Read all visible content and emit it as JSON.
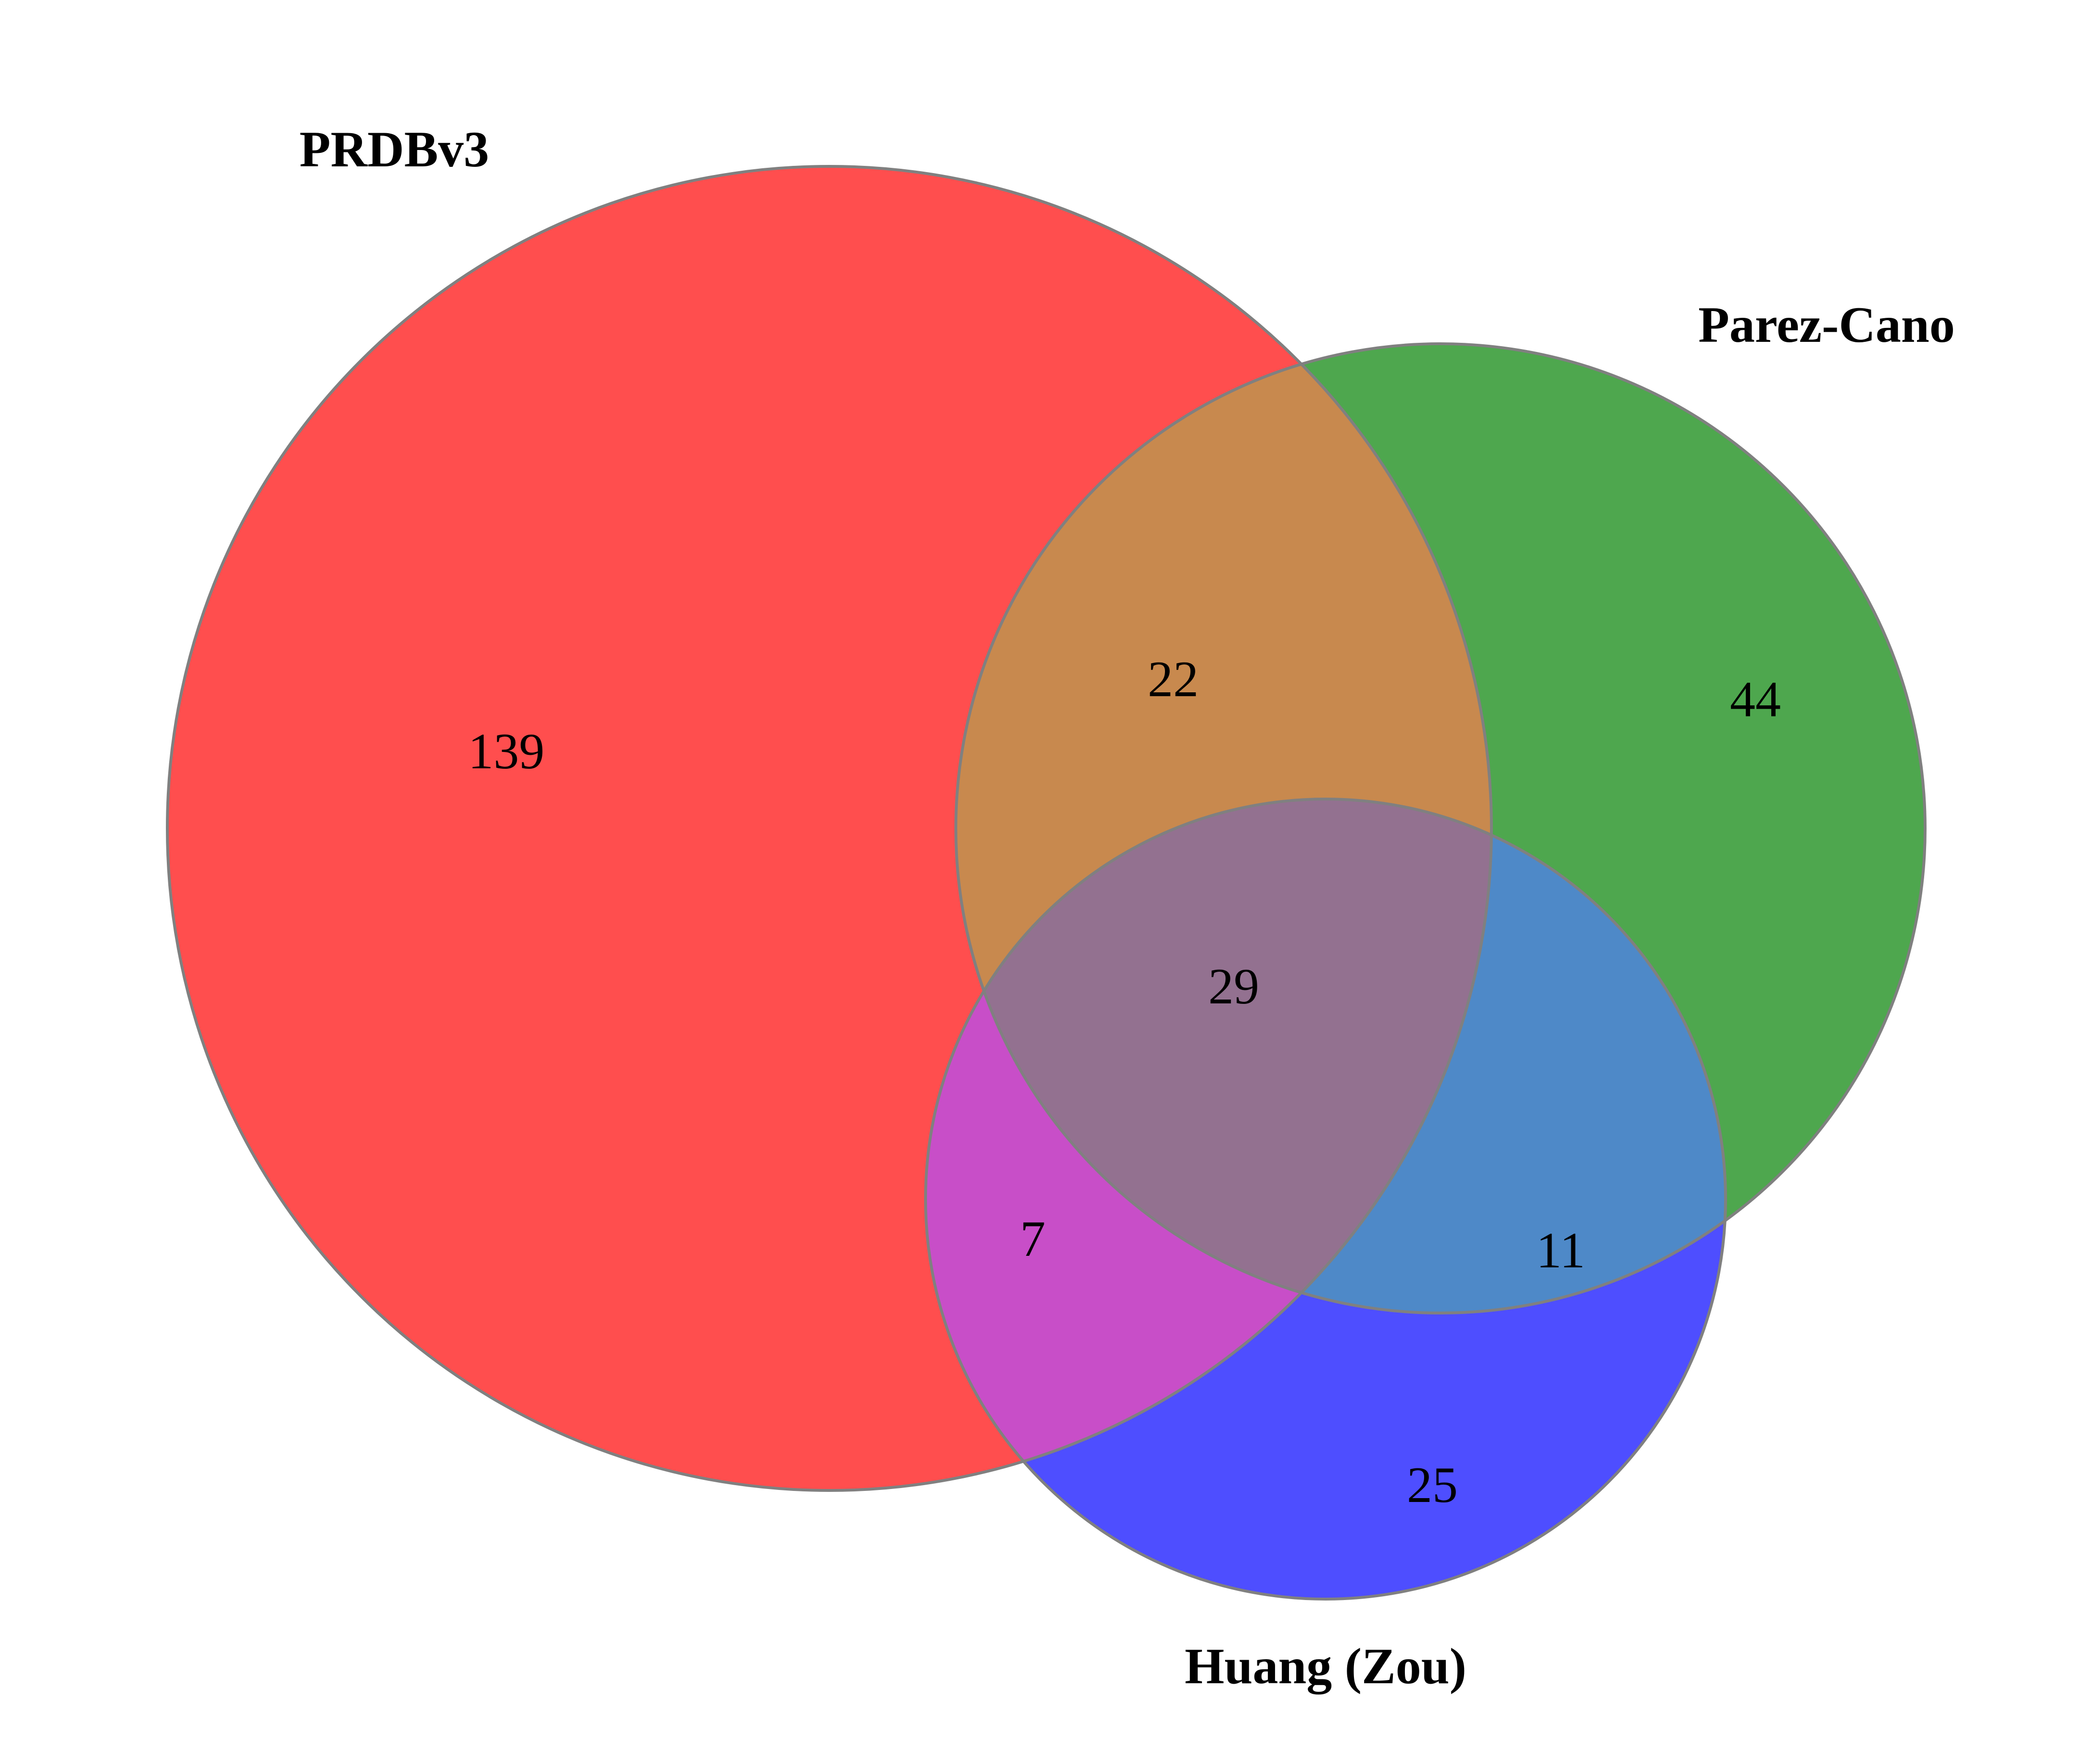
{
  "sets": [
    {
      "key": "A",
      "label": "PRDBv3",
      "color": "#ff4e4e"
    },
    {
      "key": "B",
      "label": "Parez-Cano",
      "color": "#4ea74e"
    },
    {
      "key": "C",
      "label": "Huang (Zou)",
      "color": "#4e4eff"
    }
  ],
  "regions": {
    "A_only": "139",
    "B_only": "44",
    "C_only": "25",
    "AB_only": "22",
    "AC_only": "7",
    "BC_only": "11",
    "ABC": "29"
  },
  "region_colors": {
    "A_only": "#ff4e4e",
    "B_only": "#4ea74e",
    "C_only": "#4e4eff",
    "AB_only": "#c8894e",
    "AC_only": "#c84ec8",
    "BC_only": "#4e89c8",
    "ABC": "#937190"
  }
}
